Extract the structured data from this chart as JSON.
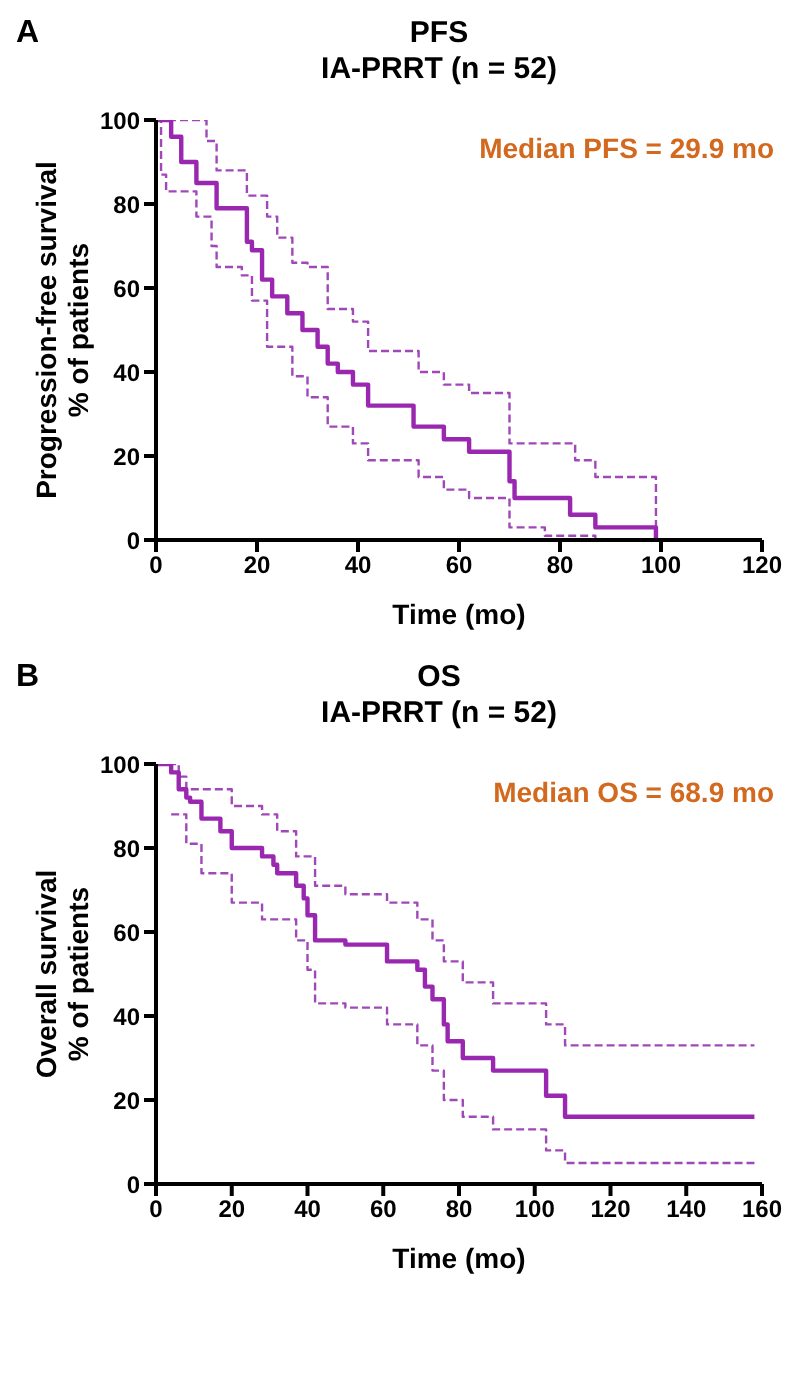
{
  "chart_data": [
    {
      "type": "step",
      "title": "PFS",
      "subtitle": "IA-PRRT (n = 52)",
      "xlabel": "Time (mo)",
      "ylabel": "Progression-free survival\n% of patients",
      "annotations": [
        "A",
        "Median PFS = 29.9 mo"
      ],
      "xlim": [
        0,
        120
      ],
      "xticks": [
        0,
        20,
        40,
        60,
        80,
        100,
        120
      ],
      "ylim": [
        0,
        100
      ],
      "yticks": [
        0,
        20,
        40,
        60,
        80,
        100
      ],
      "marker": "none",
      "series": [
        {
          "color": "#a048b8",
          "line_style": "dashed",
          "x": [
            0,
            10,
            12,
            18,
            22,
            24,
            27,
            30,
            34,
            39,
            42,
            52,
            57,
            62,
            70,
            83,
            87,
            99
          ],
          "values": [
            100,
            95,
            88,
            82,
            77,
            72,
            66,
            65,
            55,
            52,
            45,
            40,
            37,
            35,
            23,
            19,
            15,
            0
          ]
        },
        {
          "color": "#a048b8",
          "line_style": "dashed",
          "x": [
            0,
            1,
            2,
            8,
            11,
            12,
            17,
            19,
            22,
            27,
            30,
            34,
            39,
            42,
            52,
            57,
            62,
            70,
            77,
            87,
            99
          ],
          "values": [
            100,
            87,
            83,
            77,
            70,
            65,
            63,
            57,
            46,
            39,
            34,
            27,
            23,
            19,
            15,
            12,
            10,
            3,
            1,
            0,
            0
          ]
        },
        {
          "color": "#9a27b0",
          "line_style": "solid",
          "x": [
            0,
            3,
            5,
            8,
            12,
            18,
            19,
            21,
            23,
            26,
            29,
            32,
            34,
            36,
            39,
            42,
            51,
            57,
            62,
            70,
            71,
            82,
            87,
            99
          ],
          "values": [
            100,
            96,
            90,
            85,
            79,
            71,
            69,
            62,
            58,
            54,
            50,
            46,
            42,
            40,
            37,
            32,
            27,
            24,
            21,
            14,
            10,
            6,
            3,
            0
          ]
        }
      ]
    },
    {
      "type": "step",
      "title": "OS",
      "subtitle": "IA-PRRT (n = 52)",
      "xlabel": "Time (mo)",
      "ylabel": "Overall survival\n% of patients",
      "annotations": [
        "B",
        "Median OS = 68.9 mo"
      ],
      "xlim": [
        0,
        160
      ],
      "xticks": [
        0,
        20,
        40,
        60,
        80,
        100,
        120,
        140,
        160
      ],
      "ylim": [
        0,
        100
      ],
      "yticks": [
        0,
        20,
        40,
        60,
        80,
        100
      ],
      "marker": "none",
      "series": [
        {
          "color": "#a048b8",
          "line_style": "dashed",
          "x": [
            0,
            6,
            8,
            20,
            28,
            32,
            37,
            42,
            50,
            61,
            69,
            73,
            76,
            81,
            89,
            103,
            108,
            158
          ],
          "values": [
            100,
            97,
            94,
            90,
            88,
            84,
            78,
            71,
            69,
            67,
            63,
            58,
            53,
            48,
            43,
            38,
            33,
            33
          ]
        },
        {
          "color": "#a048b8",
          "line_style": "dashed",
          "x": [
            4,
            8,
            12,
            20,
            28,
            37,
            40,
            42,
            50,
            61,
            69,
            73,
            76,
            81,
            89,
            103,
            108,
            158
          ],
          "values": [
            88,
            81,
            74,
            67,
            63,
            58,
            51,
            43,
            42,
            38,
            33,
            27,
            20,
            16,
            13,
            8,
            5,
            5
          ]
        },
        {
          "color": "#9a27b0",
          "line_style": "solid",
          "x": [
            0,
            4,
            6,
            8,
            9,
            12,
            17,
            20,
            28,
            31,
            32,
            37,
            39,
            40,
            42,
            50,
            61,
            69,
            71,
            73,
            76,
            77,
            81,
            89,
            103,
            108,
            158
          ],
          "values": [
            100,
            98,
            94,
            92,
            91,
            87,
            84,
            80,
            78,
            76,
            74,
            71,
            68,
            64,
            58,
            57,
            53,
            51,
            47,
            44,
            38,
            34,
            30,
            27,
            21,
            16,
            16
          ]
        }
      ]
    }
  ]
}
